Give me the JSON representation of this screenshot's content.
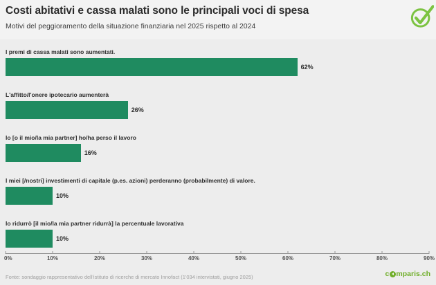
{
  "header": {
    "title": "Costi abitativi e cassa malati sono le principali voci di spesa",
    "subtitle": "Motivi del peggioramento della situazione finanziaria nel 2025 rispetto al 2024"
  },
  "chart_data": {
    "type": "bar",
    "orientation": "horizontal",
    "title": "Costi abitativi e cassa malati sono le principali voci di spesa",
    "subtitle": "Motivi del peggioramento della situazione finanziaria nel 2025 rispetto al 2024",
    "categories": [
      "I premi di cassa malati sono aumentati.",
      "L'affitto/l'onere ipotecario aumenterà",
      "Io [o il mio/la mia partner] ho/ha perso il lavoro",
      "I miei [/nostri] investimenti di capitale (p.es. azioni) perderanno (probabilmente) di valore.",
      "Io ridurrò [il mio/la mia partner ridurrà] la percentuale lavorativa"
    ],
    "values": [
      62,
      26,
      16,
      10,
      10
    ],
    "unit": "%",
    "xlim": [
      0,
      90
    ],
    "xticks": [
      0,
      10,
      20,
      30,
      40,
      50,
      60,
      70,
      80,
      90
    ],
    "grid": false,
    "legend": false,
    "bar_color": "#1f8b60"
  },
  "footer": {
    "source": "Fonte: sondaggio rappresentativo dell'istituto di ricerche di mercato Innofact (1'034 intervistati, giugno 2025)",
    "brand_prefix": "c",
    "brand_suffix": "mparis.ch",
    "brand_full": "comparis.ch"
  },
  "colors": {
    "bar": "#1f8b60",
    "brand_green": "#6fae28",
    "check_green": "#7cc342",
    "background": "#ededed",
    "header_background": "#f3f3f3",
    "axis": "#979797"
  }
}
